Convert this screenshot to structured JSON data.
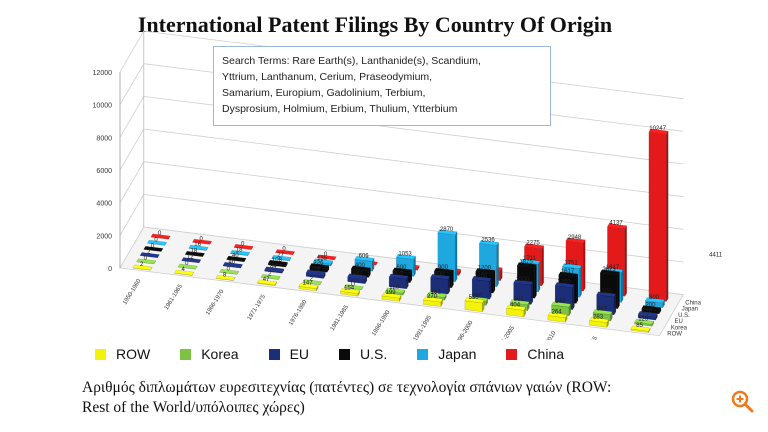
{
  "title": "International Patent Filings By Country Of Origin",
  "search_box": {
    "line1": "Search Terms:  Rare Earth(s), Lanthanide(s), Scandium,",
    "line2": "Yttrium, Lanthanum, Cerium, Praseodymium,",
    "line3": "Samarium, Europium, Gadolinium, Terbium,",
    "line4": "Dysprosium,  Holmium, Erbium, Thulium, Ytterbium"
  },
  "caption": {
    "line1": "Αριθμός διπλωμάτων ευρεσιτεχνίας (πατέντες) σε τεχνολογία σπάνιων γαιών (ROW:",
    "line2": "Rest of the World/υπόλοιπες χώρες)"
  },
  "chart_data": {
    "type": "bar",
    "title": "International Patent Filings By Country Of Origin",
    "categories": [
      "1950-1960",
      "1961-1965",
      "1966-1970",
      "1971-1975",
      "1976-1980",
      "1981-1985",
      "1986-1990",
      "1991-1995",
      "1996-2000",
      "2001-2005",
      "2006-2010",
      "2011-2015",
      "2016-2018"
    ],
    "ylim": [
      0,
      12000
    ],
    "yticks": [
      0,
      2000,
      4000,
      6000,
      8000,
      10000,
      12000
    ],
    "depth_labels": [
      "China",
      "Japan",
      "U.S.",
      "EU",
      "Korea",
      "ROW"
    ],
    "grid": true,
    "legend_position": "bottom",
    "series": [
      {
        "name": "ROW",
        "color": "#f2f20a",
        "values": [
          2,
          4,
          8,
          47,
          147,
          154,
          199,
          270,
          536,
          404,
          264,
          283,
          85
        ]
      },
      {
        "name": "Korea",
        "color": "#7dc242",
        "values": [
          0,
          0,
          0,
          2,
          2,
          17,
          120,
          181,
          240,
          361,
          540,
          387,
          120
        ]
      },
      {
        "name": "EU",
        "color": "#1c2e78",
        "values": [
          2,
          12,
          40,
          84,
          226,
          300,
          600,
          900,
          1100,
          1200,
          1350,
          1100,
          220
        ]
      },
      {
        "name": "U.S.",
        "color": "#0a0a0a",
        "values": [
          0,
          18,
          40,
          108,
          226,
          400,
          600,
          900,
          1200,
          1875,
          1617,
          2073,
          200
        ]
      },
      {
        "name": "Japan",
        "color": "#1fa7e0",
        "values": [
          0,
          16,
          18,
          27,
          135,
          606,
          1053,
          2870,
          2536,
          1711,
          1751,
          1817,
          300
        ]
      },
      {
        "name": "China",
        "color": "#e41a1a",
        "values": [
          0,
          0,
          0,
          0,
          0,
          0,
          100,
          200,
          600,
          2275,
          2948,
          4137,
          10247
        ]
      }
    ],
    "extra_label": {
      "series": "China",
      "value": 4411
    }
  }
}
